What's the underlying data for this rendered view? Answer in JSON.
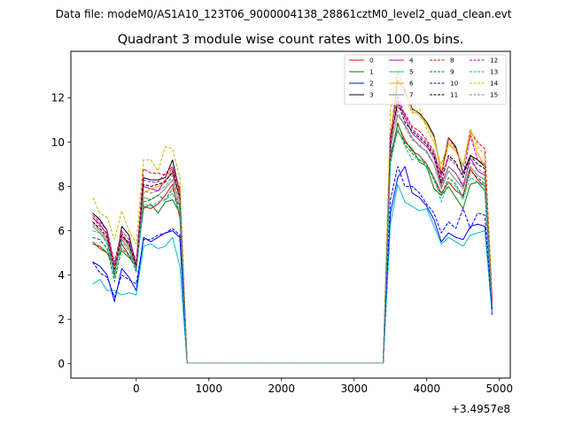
{
  "suptitle": "Data file: modeM0/AS1A10_123T06_9000004138_28861cztM0_level2_quad_clean.evt",
  "chart_data": {
    "type": "line",
    "title": "Quadrant 3 module wise count rates with 100.0s bins.",
    "xlabel": "",
    "ylabel": "",
    "x_offset_label": "+3.4957e8",
    "xlim": [
      -900,
      5150
    ],
    "ylim": [
      -0.65,
      14.1
    ],
    "xticks": [
      0,
      1000,
      2000,
      3000,
      4000,
      5000
    ],
    "xtick_labels": [
      "0",
      "1000",
      "2000",
      "3000",
      "4000",
      "5000"
    ],
    "yticks": [
      0,
      2,
      4,
      6,
      8,
      10,
      12
    ],
    "ytick_labels": [
      "0",
      "2",
      "4",
      "6",
      "8",
      "10",
      "12"
    ],
    "grid": false,
    "legend_position": "top-right",
    "legend_columns": 4,
    "x": [
      -600,
      -500,
      -400,
      -300,
      -200,
      -100,
      0,
      100,
      200,
      300,
      400,
      500,
      600,
      700,
      800,
      900,
      1000,
      1100,
      1200,
      1300,
      1400,
      1500,
      1600,
      1700,
      1800,
      1900,
      2000,
      2100,
      2200,
      2300,
      2400,
      2500,
      2600,
      2700,
      2800,
      2900,
      3000,
      3100,
      3200,
      3300,
      3400,
      3500,
      3600,
      3700,
      3800,
      3900,
      4000,
      4100,
      4200,
      4300,
      4400,
      4500,
      4600,
      4700,
      4800,
      4900
    ],
    "series": [
      {
        "name": "0",
        "color": "#ff0000",
        "dash": "solid",
        "values": [
          5.5,
          5.2,
          5.0,
          4.3,
          5.4,
          4.9,
          4.5,
          7.1,
          7.0,
          7.2,
          7.6,
          8.1,
          6.6,
          0.03,
          0.03,
          0.03,
          0.03,
          0.03,
          0.03,
          0.03,
          0.03,
          0.03,
          0.03,
          0.03,
          0.03,
          0.03,
          0.03,
          0.03,
          0.03,
          0.03,
          0.03,
          0.03,
          0.03,
          0.03,
          0.03,
          0.03,
          0.03,
          0.03,
          0.03,
          0.03,
          0.03,
          9.3,
          10.8,
          10.1,
          9.6,
          9.4,
          9.0,
          8.4,
          7.7,
          8.2,
          7.8,
          7.6,
          8.8,
          8.3,
          8.0,
          2.6
        ]
      },
      {
        "name": "1",
        "color": "#008000",
        "dash": "solid",
        "values": [
          5.4,
          5.3,
          5.0,
          4.6,
          5.1,
          4.8,
          4.4,
          7.0,
          7.2,
          6.8,
          7.3,
          7.4,
          6.8,
          0.03,
          0.03,
          0.03,
          0.03,
          0.03,
          0.03,
          0.03,
          0.03,
          0.03,
          0.03,
          0.03,
          0.03,
          0.03,
          0.03,
          0.03,
          0.03,
          0.03,
          0.03,
          0.03,
          0.03,
          0.03,
          0.03,
          0.03,
          0.03,
          0.03,
          0.03,
          0.03,
          0.03,
          9.5,
          10.5,
          10.0,
          9.7,
          9.1,
          8.9,
          7.9,
          7.6,
          8.0,
          7.5,
          7.0,
          8.1,
          8.2,
          7.8,
          2.5
        ]
      },
      {
        "name": "2",
        "color": "#0000ff",
        "dash": "solid",
        "values": [
          4.6,
          4.4,
          4.0,
          2.8,
          4.3,
          3.9,
          3.3,
          5.7,
          5.5,
          5.7,
          5.9,
          6.0,
          5.7,
          0.03,
          0.03,
          0.03,
          0.03,
          0.03,
          0.03,
          0.03,
          0.03,
          0.03,
          0.03,
          0.03,
          0.03,
          0.03,
          0.03,
          0.03,
          0.03,
          0.03,
          0.03,
          0.03,
          0.03,
          0.03,
          0.03,
          0.03,
          0.03,
          0.03,
          0.03,
          0.03,
          0.03,
          6.8,
          8.4,
          8.9,
          7.7,
          7.5,
          7.1,
          6.5,
          5.5,
          5.9,
          5.7,
          5.6,
          6.2,
          6.3,
          6.2,
          2.2
        ]
      },
      {
        "name": "3",
        "color": "#000000",
        "dash": "solid",
        "values": [
          6.8,
          6.5,
          6.0,
          4.0,
          6.2,
          5.8,
          4.4,
          8.4,
          8.3,
          8.3,
          8.4,
          9.2,
          7.7,
          0.03,
          0.03,
          0.03,
          0.03,
          0.03,
          0.03,
          0.03,
          0.03,
          0.03,
          0.03,
          0.03,
          0.03,
          0.03,
          0.03,
          0.03,
          0.03,
          0.03,
          0.03,
          0.03,
          0.03,
          0.03,
          0.03,
          0.03,
          0.03,
          0.03,
          0.03,
          0.03,
          0.03,
          10.2,
          12.8,
          12.3,
          11.5,
          11.3,
          10.9,
          10.3,
          8.6,
          10.2,
          9.8,
          8.6,
          9.4,
          9.2,
          8.9,
          2.8
        ]
      },
      {
        "name": "4",
        "color": "#bf00bf",
        "dash": "solid",
        "values": [
          6.6,
          6.3,
          5.8,
          4.4,
          5.7,
          5.5,
          4.3,
          8.0,
          7.9,
          7.8,
          8.3,
          8.6,
          7.5,
          0.03,
          0.03,
          0.03,
          0.03,
          0.03,
          0.03,
          0.03,
          0.03,
          0.03,
          0.03,
          0.03,
          0.03,
          0.03,
          0.03,
          0.03,
          0.03,
          0.03,
          0.03,
          0.03,
          0.03,
          0.03,
          0.03,
          0.03,
          0.03,
          0.03,
          0.03,
          0.03,
          0.03,
          10.0,
          11.9,
          11.1,
          10.4,
          10.1,
          9.8,
          9.3,
          8.1,
          8.9,
          8.6,
          8.0,
          9.3,
          8.7,
          8.5,
          2.7
        ]
      },
      {
        "name": "5",
        "color": "#00bfbf",
        "dash": "solid",
        "values": [
          3.6,
          3.8,
          3.3,
          3.3,
          3.1,
          3.2,
          3.1,
          5.3,
          5.4,
          5.2,
          5.3,
          5.7,
          4.4,
          0.03,
          0.03,
          0.03,
          0.03,
          0.03,
          0.03,
          0.03,
          0.03,
          0.03,
          0.03,
          0.03,
          0.03,
          0.03,
          0.03,
          0.03,
          0.03,
          0.03,
          0.03,
          0.03,
          0.03,
          0.03,
          0.03,
          0.03,
          0.03,
          0.03,
          0.03,
          0.03,
          0.03,
          6.3,
          8.1,
          7.3,
          7.1,
          6.9,
          7.0,
          6.2,
          5.4,
          5.7,
          5.5,
          5.3,
          5.8,
          5.9,
          6.0,
          2.3
        ]
      },
      {
        "name": "6",
        "color": "#ffa500",
        "dash": "solid",
        "values": [
          6.4,
          6.0,
          5.6,
          4.3,
          5.8,
          5.3,
          4.5,
          7.7,
          7.9,
          8.0,
          8.2,
          8.9,
          7.6,
          0.03,
          0.03,
          0.03,
          0.03,
          0.03,
          0.03,
          0.03,
          0.03,
          0.03,
          0.03,
          0.03,
          0.03,
          0.03,
          0.03,
          0.03,
          0.03,
          0.03,
          0.03,
          0.03,
          0.03,
          0.03,
          0.03,
          0.03,
          0.03,
          0.03,
          0.03,
          0.03,
          0.03,
          10.1,
          13.2,
          12.4,
          11.4,
          11.2,
          10.8,
          10.2,
          8.7,
          9.9,
          9.6,
          8.9,
          10.4,
          9.5,
          8.9,
          2.9
        ]
      },
      {
        "name": "7",
        "color": "#808080",
        "dash": "solid",
        "values": [
          6.2,
          5.9,
          5.5,
          4.1,
          5.6,
          5.2,
          4.2,
          7.5,
          7.4,
          7.6,
          7.9,
          8.3,
          7.1,
          0.03,
          0.03,
          0.03,
          0.03,
          0.03,
          0.03,
          0.03,
          0.03,
          0.03,
          0.03,
          0.03,
          0.03,
          0.03,
          0.03,
          0.03,
          0.03,
          0.03,
          0.03,
          0.03,
          0.03,
          0.03,
          0.03,
          0.03,
          0.03,
          0.03,
          0.03,
          0.03,
          0.03,
          9.8,
          11.2,
          10.8,
          10.2,
          9.8,
          9.6,
          9.0,
          7.9,
          8.7,
          8.3,
          7.9,
          8.9,
          8.5,
          8.3,
          2.6
        ]
      },
      {
        "name": "8",
        "color": "#ff0000",
        "dash": "dashed",
        "values": [
          6.6,
          6.2,
          5.9,
          4.4,
          5.9,
          5.4,
          4.5,
          8.8,
          8.6,
          8.6,
          8.5,
          8.8,
          7.8,
          0.03,
          0.03,
          0.03,
          0.03,
          0.03,
          0.03,
          0.03,
          0.03,
          0.03,
          0.03,
          0.03,
          0.03,
          0.03,
          0.03,
          0.03,
          0.03,
          0.03,
          0.03,
          0.03,
          0.03,
          0.03,
          0.03,
          0.03,
          0.03,
          0.03,
          0.03,
          0.03,
          0.03,
          10.3,
          11.6,
          11.3,
          10.7,
          10.5,
          10.1,
          9.6,
          8.4,
          10.2,
          9.7,
          8.9,
          10.5,
          10.0,
          9.7,
          3.0
        ]
      },
      {
        "name": "9",
        "color": "#008000",
        "dash": "dashed",
        "values": [
          5.7,
          5.6,
          5.2,
          3.7,
          5.2,
          4.9,
          4.2,
          7.3,
          7.4,
          7.6,
          7.4,
          7.9,
          7.0,
          0.03,
          0.03,
          0.03,
          0.03,
          0.03,
          0.03,
          0.03,
          0.03,
          0.03,
          0.03,
          0.03,
          0.03,
          0.03,
          0.03,
          0.03,
          0.03,
          0.03,
          0.03,
          0.03,
          0.03,
          0.03,
          0.03,
          0.03,
          0.03,
          0.03,
          0.03,
          0.03,
          0.03,
          9.1,
          10.9,
          9.9,
          9.5,
          9.2,
          9.0,
          8.3,
          7.6,
          8.4,
          8.1,
          7.5,
          8.7,
          8.4,
          8.1,
          2.7
        ]
      },
      {
        "name": "10",
        "color": "#0000ff",
        "dash": "dashed",
        "values": [
          4.6,
          4.1,
          3.9,
          3.0,
          4.0,
          3.8,
          3.6,
          5.6,
          5.6,
          5.8,
          5.9,
          6.1,
          5.8,
          0.03,
          0.03,
          0.03,
          0.03,
          0.03,
          0.03,
          0.03,
          0.03,
          0.03,
          0.03,
          0.03,
          0.03,
          0.03,
          0.03,
          0.03,
          0.03,
          0.03,
          0.03,
          0.03,
          0.03,
          0.03,
          0.03,
          0.03,
          0.03,
          0.03,
          0.03,
          0.03,
          0.03,
          7.4,
          8.9,
          8.0,
          8.0,
          7.7,
          7.2,
          6.8,
          5.9,
          6.4,
          6.1,
          7.0,
          6.1,
          6.8,
          6.7,
          2.4
        ]
      },
      {
        "name": "11",
        "color": "#000000",
        "dash": "dashed",
        "values": [
          6.4,
          6.1,
          5.7,
          4.2,
          5.8,
          5.4,
          4.4,
          8.1,
          8.0,
          8.1,
          8.2,
          8.7,
          7.5,
          0.03,
          0.03,
          0.03,
          0.03,
          0.03,
          0.03,
          0.03,
          0.03,
          0.03,
          0.03,
          0.03,
          0.03,
          0.03,
          0.03,
          0.03,
          0.03,
          0.03,
          0.03,
          0.03,
          0.03,
          0.03,
          0.03,
          0.03,
          0.03,
          0.03,
          0.03,
          0.03,
          0.03,
          10.0,
          11.8,
          10.9,
          10.5,
          10.2,
          9.9,
          9.4,
          8.2,
          9.4,
          9.1,
          8.4,
          9.4,
          9.0,
          8.8,
          2.7
        ]
      },
      {
        "name": "12",
        "color": "#bf00bf",
        "dash": "dashed",
        "values": [
          6.7,
          6.4,
          6.0,
          4.6,
          6.0,
          5.6,
          4.6,
          8.3,
          8.2,
          8.2,
          8.6,
          8.9,
          7.9,
          0.03,
          0.03,
          0.03,
          0.03,
          0.03,
          0.03,
          0.03,
          0.03,
          0.03,
          0.03,
          0.03,
          0.03,
          0.03,
          0.03,
          0.03,
          0.03,
          0.03,
          0.03,
          0.03,
          0.03,
          0.03,
          0.03,
          0.03,
          0.03,
          0.03,
          0.03,
          0.03,
          0.03,
          10.4,
          12.1,
          11.2,
          10.6,
          10.3,
          10.0,
          9.5,
          8.5,
          9.3,
          9.0,
          8.5,
          10.3,
          9.2,
          9.0,
          2.8
        ]
      },
      {
        "name": "13",
        "color": "#00bfbf",
        "dash": "dashed",
        "values": [
          6.0,
          5.9,
          5.4,
          3.9,
          5.5,
          5.1,
          4.1,
          7.2,
          7.1,
          7.3,
          7.4,
          7.7,
          6.8,
          0.03,
          0.03,
          0.03,
          0.03,
          0.03,
          0.03,
          0.03,
          0.03,
          0.03,
          0.03,
          0.03,
          0.03,
          0.03,
          0.03,
          0.03,
          0.03,
          0.03,
          0.03,
          0.03,
          0.03,
          0.03,
          0.03,
          0.03,
          0.03,
          0.03,
          0.03,
          0.03,
          0.03,
          9.0,
          10.6,
          9.8,
          9.2,
          9.4,
          8.8,
          8.4,
          7.3,
          8.2,
          8.0,
          7.4,
          8.4,
          8.2,
          8.0,
          2.6
        ]
      },
      {
        "name": "14",
        "color": "#bfbf00",
        "dash": "dashed",
        "values": [
          7.5,
          6.8,
          6.6,
          5.6,
          6.9,
          6.0,
          5.4,
          9.2,
          9.2,
          8.7,
          9.8,
          9.7,
          8.4,
          0.03,
          0.03,
          0.03,
          0.03,
          0.03,
          0.03,
          0.03,
          0.03,
          0.03,
          0.03,
          0.03,
          0.03,
          0.03,
          0.03,
          0.03,
          0.03,
          0.03,
          0.03,
          0.03,
          0.03,
          0.03,
          0.03,
          0.03,
          0.03,
          0.03,
          0.03,
          0.03,
          0.03,
          11.5,
          13.3,
          12.1,
          11.3,
          11.5,
          10.6,
          10.0,
          9.0,
          10.0,
          9.6,
          8.9,
          10.6,
          9.8,
          9.4,
          3.1
        ]
      },
      {
        "name": "15",
        "color": "#808080",
        "dash": "dashed",
        "values": [
          6.3,
          6.0,
          5.6,
          4.2,
          5.7,
          5.3,
          4.3,
          7.8,
          7.7,
          7.8,
          8.0,
          8.5,
          7.3,
          0.03,
          0.03,
          0.03,
          0.03,
          0.03,
          0.03,
          0.03,
          0.03,
          0.03,
          0.03,
          0.03,
          0.03,
          0.03,
          0.03,
          0.03,
          0.03,
          0.03,
          0.03,
          0.03,
          0.03,
          0.03,
          0.03,
          0.03,
          0.03,
          0.03,
          0.03,
          0.03,
          0.03,
          9.6,
          11.4,
          10.7,
          10.1,
          9.9,
          9.5,
          9.0,
          8.0,
          8.9,
          8.6,
          8.1,
          9.1,
          8.8,
          8.6,
          2.7
        ]
      }
    ]
  }
}
